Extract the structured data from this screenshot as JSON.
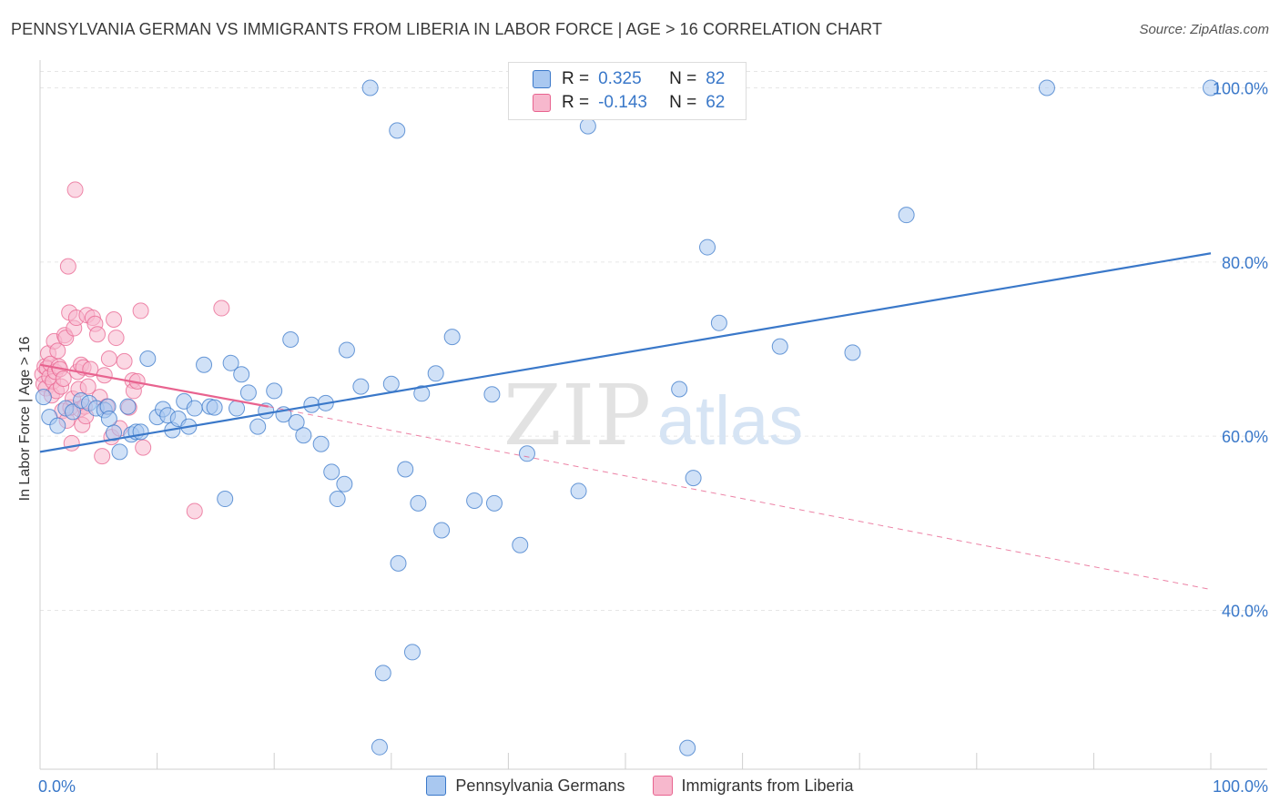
{
  "header": {
    "title": "PENNSYLVANIA GERMAN VS IMMIGRANTS FROM LIBERIA IN LABOR FORCE | AGE > 16 CORRELATION CHART",
    "source": "Source: ZipAtlas.com"
  },
  "watermark": {
    "zip": "ZIP",
    "atlas": "atlas"
  },
  "legend": {
    "series1": {
      "r_label": "R =",
      "r_value": "0.325",
      "n_label": "N =",
      "n_value": "82",
      "color": "#a9c8f0"
    },
    "series2": {
      "r_label": "R =",
      "r_value": "-0.143",
      "n_label": "N =",
      "n_value": "62",
      "color": "#f7b8cd"
    }
  },
  "bottom_legend": {
    "series1": "Pennsylvania Germans",
    "series2": "Immigrants from Liberia"
  },
  "chart_data": {
    "type": "scatter",
    "xlabel": "",
    "ylabel": "In Labor Force | Age > 16",
    "xlim": [
      0,
      100
    ],
    "ylim": [
      20,
      103
    ],
    "x_tick_labels": [
      "0.0%",
      "100.0%"
    ],
    "y_ticks": [
      40,
      60,
      80,
      100
    ],
    "y_tick_labels": [
      "40.0%",
      "60.0%",
      "80.0%",
      "100.0%"
    ],
    "grid": true,
    "series": [
      {
        "name": "Pennsylvania Germans",
        "color": "#3a78c9",
        "fill": "#a9c8f0",
        "trend": {
          "x": [
            0,
            100
          ],
          "y": [
            58.2,
            81.0
          ],
          "style": "solid"
        },
        "points": [
          [
            0.8,
            62.2
          ],
          [
            1.5,
            61.2
          ],
          [
            2.2,
            63.2
          ],
          [
            2.8,
            62.8
          ],
          [
            3.5,
            64.1
          ],
          [
            4.2,
            63.8
          ],
          [
            4.8,
            63.2
          ],
          [
            5.5,
            63.0
          ],
          [
            5.8,
            63.4
          ],
          [
            5.9,
            62.0
          ],
          [
            6.3,
            60.4
          ],
          [
            6.8,
            58.2
          ],
          [
            7.5,
            63.4
          ],
          [
            7.8,
            60.2
          ],
          [
            8.2,
            60.5
          ],
          [
            8.6,
            60.5
          ],
          [
            9.2,
            68.9
          ],
          [
            10.0,
            62.2
          ],
          [
            10.5,
            63.1
          ],
          [
            10.9,
            62.4
          ],
          [
            11.3,
            60.7
          ],
          [
            11.8,
            62.0
          ],
          [
            12.3,
            64.0
          ],
          [
            12.7,
            61.1
          ],
          [
            13.2,
            63.2
          ],
          [
            14.0,
            68.2
          ],
          [
            14.5,
            63.4
          ],
          [
            14.9,
            63.3
          ],
          [
            15.8,
            52.8
          ],
          [
            16.3,
            68.4
          ],
          [
            16.8,
            63.2
          ],
          [
            17.2,
            67.1
          ],
          [
            17.8,
            65.0
          ],
          [
            18.6,
            61.1
          ],
          [
            19.3,
            62.9
          ],
          [
            20.0,
            65.2
          ],
          [
            20.8,
            62.5
          ],
          [
            21.4,
            71.1
          ],
          [
            21.9,
            61.6
          ],
          [
            22.5,
            60.1
          ],
          [
            23.2,
            63.6
          ],
          [
            24.0,
            59.1
          ],
          [
            24.4,
            63.8
          ],
          [
            24.9,
            55.9
          ],
          [
            25.4,
            52.8
          ],
          [
            26.0,
            54.5
          ],
          [
            26.2,
            69.9
          ],
          [
            27.4,
            65.7
          ],
          [
            28.2,
            100.0
          ],
          [
            29.0,
            24.3
          ],
          [
            29.3,
            32.8
          ],
          [
            30.0,
            66.0
          ],
          [
            30.5,
            95.1
          ],
          [
            30.6,
            45.4
          ],
          [
            31.2,
            56.2
          ],
          [
            31.8,
            35.2
          ],
          [
            32.3,
            52.3
          ],
          [
            32.6,
            64.9
          ],
          [
            33.8,
            67.2
          ],
          [
            34.3,
            49.2
          ],
          [
            35.2,
            71.4
          ],
          [
            37.1,
            52.6
          ],
          [
            38.6,
            64.8
          ],
          [
            38.8,
            52.3
          ],
          [
            41.0,
            47.5
          ],
          [
            41.6,
            58.0
          ],
          [
            43.8,
            100.0
          ],
          [
            46.0,
            53.7
          ],
          [
            46.8,
            95.6
          ],
          [
            48.8,
            100.0
          ],
          [
            54.6,
            65.4
          ],
          [
            55.3,
            24.2
          ],
          [
            55.8,
            55.2
          ],
          [
            57.0,
            81.7
          ],
          [
            58.0,
            73.0
          ],
          [
            59.3,
            100.0
          ],
          [
            63.2,
            70.3
          ],
          [
            69.4,
            69.6
          ],
          [
            74.0,
            85.4
          ],
          [
            86.0,
            100.0
          ],
          [
            100.0,
            100.0
          ],
          [
            0.3,
            64.5
          ]
        ]
      },
      {
        "name": "Immigrants from Liberia",
        "color": "#e8638f",
        "fill": "#f7b8cd",
        "trend": {
          "x": [
            0,
            19.5
          ],
          "y": [
            68.2,
            63.4
          ],
          "style": "solid"
        },
        "trend_extended": {
          "x": [
            19.5,
            100
          ],
          "y": [
            63.4,
            42.4
          ],
          "style": "dashed"
        },
        "points": [
          [
            0.2,
            67.1
          ],
          [
            0.3,
            66.0
          ],
          [
            0.4,
            68.0
          ],
          [
            0.5,
            65.5
          ],
          [
            0.6,
            67.8
          ],
          [
            0.7,
            69.5
          ],
          [
            0.8,
            66.8
          ],
          [
            0.9,
            68.3
          ],
          [
            1.0,
            64.7
          ],
          [
            1.1,
            66.3
          ],
          [
            1.2,
            70.9
          ],
          [
            1.3,
            67.4
          ],
          [
            1.4,
            65.2
          ],
          [
            1.5,
            69.8
          ],
          [
            1.6,
            68.0
          ],
          [
            1.7,
            67.7
          ],
          [
            1.8,
            65.7
          ],
          [
            1.9,
            62.9
          ],
          [
            2.0,
            66.6
          ],
          [
            2.1,
            71.6
          ],
          [
            2.2,
            71.3
          ],
          [
            2.3,
            61.8
          ],
          [
            2.4,
            79.5
          ],
          [
            2.5,
            74.2
          ],
          [
            2.6,
            63.3
          ],
          [
            2.7,
            59.2
          ],
          [
            2.8,
            64.3
          ],
          [
            2.9,
            72.4
          ],
          [
            3.0,
            88.3
          ],
          [
            3.1,
            73.6
          ],
          [
            3.2,
            67.4
          ],
          [
            3.3,
            65.4
          ],
          [
            3.4,
            63.1
          ],
          [
            3.5,
            68.2
          ],
          [
            3.6,
            61.3
          ],
          [
            3.7,
            67.9
          ],
          [
            3.8,
            63.4
          ],
          [
            3.9,
            62.3
          ],
          [
            4.0,
            73.9
          ],
          [
            4.1,
            65.7
          ],
          [
            4.3,
            67.7
          ],
          [
            4.5,
            73.6
          ],
          [
            4.7,
            72.9
          ],
          [
            4.9,
            71.7
          ],
          [
            5.1,
            64.5
          ],
          [
            5.3,
            57.7
          ],
          [
            5.5,
            67.0
          ],
          [
            5.7,
            63.4
          ],
          [
            5.9,
            68.9
          ],
          [
            6.1,
            59.9
          ],
          [
            6.3,
            73.4
          ],
          [
            6.5,
            71.3
          ],
          [
            6.8,
            60.9
          ],
          [
            7.2,
            68.6
          ],
          [
            7.6,
            63.3
          ],
          [
            7.9,
            66.4
          ],
          [
            8.0,
            65.2
          ],
          [
            8.3,
            66.3
          ],
          [
            8.6,
            74.4
          ],
          [
            8.8,
            58.7
          ],
          [
            13.2,
            51.4
          ],
          [
            15.5,
            74.7
          ]
        ]
      }
    ]
  }
}
